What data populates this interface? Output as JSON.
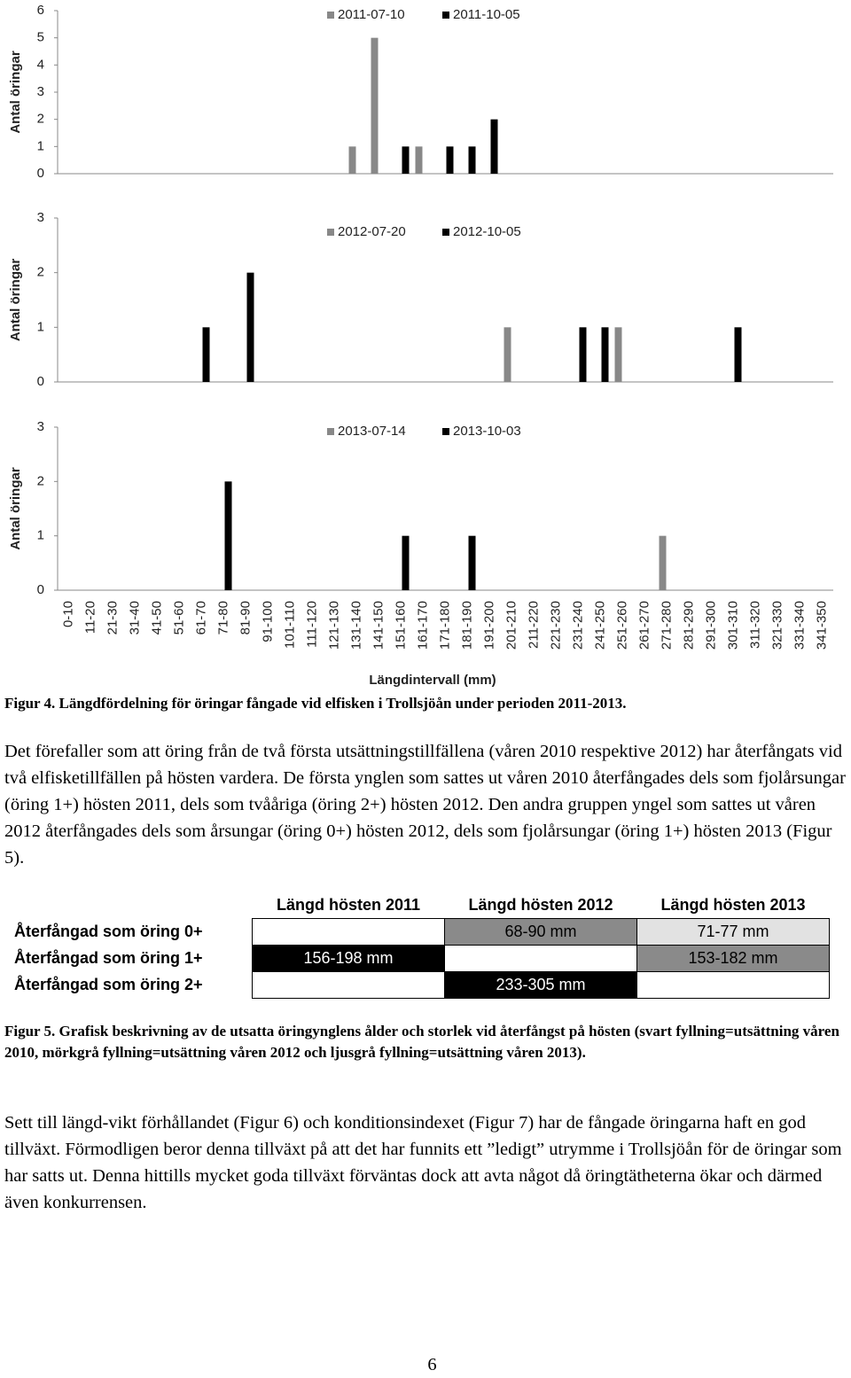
{
  "chart_data": [
    {
      "type": "bar",
      "ylabel": "Antal öringar",
      "categories": [
        null,
        null,
        null,
        null,
        null,
        null,
        null,
        null,
        null,
        null,
        null,
        null,
        null,
        null,
        null,
        null,
        null,
        null,
        null,
        null,
        null,
        null,
        null,
        null,
        null,
        null,
        null,
        null,
        null,
        null,
        null,
        null,
        null,
        null,
        null
      ],
      "series": [
        {
          "name": "2011-07-10",
          "color": "#888888",
          "values": [
            0,
            0,
            0,
            0,
            0,
            0,
            0,
            0,
            0,
            0,
            0,
            0,
            0,
            1,
            5,
            0,
            1,
            0,
            0,
            0,
            0,
            0,
            0,
            0,
            0,
            0,
            0,
            0,
            0,
            0,
            0,
            0,
            0,
            0,
            0
          ]
        },
        {
          "name": "2011-10-05",
          "color": "#000000",
          "values": [
            0,
            0,
            0,
            0,
            0,
            0,
            0,
            0,
            0,
            0,
            0,
            0,
            0,
            0,
            0,
            1,
            0,
            1,
            1,
            2,
            0,
            0,
            0,
            0,
            0,
            0,
            0,
            0,
            0,
            0,
            0,
            0,
            0,
            0,
            0
          ]
        }
      ],
      "ylim": [
        0,
        6
      ],
      "yticks": [
        0,
        1,
        2,
        3,
        4,
        5,
        6
      ]
    },
    {
      "type": "bar",
      "ylabel": "Antal öringar",
      "categories": [
        null,
        null,
        null,
        null,
        null,
        null,
        null,
        null,
        null,
        null,
        null,
        null,
        null,
        null,
        null,
        null,
        null,
        null,
        null,
        null,
        null,
        null,
        null,
        null,
        null,
        null,
        null,
        null,
        null,
        null,
        null,
        null,
        null,
        null,
        null
      ],
      "series": [
        {
          "name": "2012-07-20",
          "color": "#888888",
          "values": [
            0,
            0,
            0,
            0,
            0,
            0,
            0,
            0,
            0,
            0,
            0,
            0,
            0,
            0,
            0,
            0,
            0,
            0,
            0,
            0,
            1,
            0,
            0,
            0,
            0,
            1,
            0,
            0,
            0,
            0,
            0,
            0,
            0,
            0,
            0
          ]
        },
        {
          "name": "2012-10-05",
          "color": "#000000",
          "values": [
            0,
            0,
            0,
            0,
            0,
            0,
            1,
            0,
            2,
            0,
            0,
            0,
            0,
            0,
            0,
            0,
            0,
            0,
            0,
            0,
            0,
            0,
            0,
            1,
            1,
            0,
            0,
            0,
            0,
            0,
            1,
            0,
            0,
            0,
            0
          ]
        }
      ],
      "ylim": [
        0,
        3
      ],
      "yticks": [
        0,
        1,
        2,
        3
      ]
    },
    {
      "type": "bar",
      "ylabel": "Antal öringar",
      "xlabel": "Längdintervall (mm)",
      "categories": [
        "0-10",
        "11-20",
        "21-30",
        "31-40",
        "41-50",
        "51-60",
        "61-70",
        "71-80",
        "81-90",
        "91-100",
        "101-110",
        "111-120",
        "121-130",
        "131-140",
        "141-150",
        "151-160",
        "161-170",
        "171-180",
        "181-190",
        "191-200",
        "201-210",
        "211-220",
        "221-230",
        "231-240",
        "241-250",
        "251-260",
        "261-270",
        "271-280",
        "281-290",
        "291-300",
        "301-310",
        "311-320",
        "321-330",
        "331-340",
        "341-350"
      ],
      "series": [
        {
          "name": "2013-07-14",
          "color": "#888888",
          "values": [
            0,
            0,
            0,
            0,
            0,
            0,
            0,
            0,
            0,
            0,
            0,
            0,
            0,
            0,
            0,
            0,
            0,
            0,
            0,
            0,
            0,
            0,
            0,
            0,
            0,
            0,
            0,
            1,
            0,
            0,
            0,
            0,
            0,
            0,
            0
          ]
        },
        {
          "name": "2013-10-03",
          "color": "#000000",
          "values": [
            0,
            0,
            0,
            0,
            0,
            0,
            0,
            2,
            0,
            0,
            0,
            0,
            0,
            0,
            0,
            1,
            0,
            0,
            1,
            0,
            0,
            0,
            0,
            0,
            0,
            0,
            0,
            0,
            0,
            0,
            0,
            0,
            0,
            0,
            0
          ]
        }
      ],
      "ylim": [
        0,
        3
      ],
      "yticks": [
        0,
        1,
        2,
        3
      ]
    }
  ],
  "document": {
    "figure4_caption": "Figur 4. Längdfördelning för öringar fångade vid elfisken i Trollsjöån under perioden 2011-2013.",
    "paragraph_1": "Det förefaller som att öring från de två första utsättningstillfällena (våren 2010 respektive 2012) har återfångats vid två elfisketillfällen på hösten vardera. De första ynglen som sattes ut våren 2010 återfångades dels som fjolårsungar (öring 1+) hösten 2011, dels som tvååriga (öring 2+) hösten 2012. Den andra gruppen yngel som sattes ut våren 2012 återfångades dels som årsungar (öring 0+) hösten 2012, dels som fjolårsungar (öring 1+) hösten 2013 (Figur 5).",
    "table": {
      "columns": [
        "Längd hösten 2011",
        "Längd hösten 2012",
        "Längd hösten 2013"
      ],
      "rows": [
        {
          "label": "Återfångad som öring 0+",
          "cells": [
            null,
            "68-90 mm",
            "71-77 mm"
          ]
        },
        {
          "label": "Återfångad som öring 1+",
          "cells": [
            "156-198 mm",
            null,
            "153-182 mm"
          ]
        },
        {
          "label": "Återfångad som öring 2+",
          "cells": [
            null,
            "233-305 mm",
            null
          ]
        }
      ]
    },
    "figure5_caption": "Figur 5. Grafisk beskrivning av de utsatta öringynglens ålder och storlek vid återfångst på hösten (svart fyllning=utsättning våren 2010, mörkgrå fyllning=utsättning våren 2012 och ljusgrå fyllning=utsättning våren 2013).",
    "paragraph_2": "Sett till längd-vikt förhållandet (Figur 6) och konditionsindexet (Figur 7) har de fångade öringarna haft en god tillväxt. Förmodligen beror denna tillväxt på att det har funnits ett ”ledigt” utrymme i Trollsjöån för de öringar som har satts ut. Denna hittills mycket goda tillväxt förväntas dock att avta något då öringtätheterna ökar och därmed även konkurrensen.",
    "page_number": 6
  }
}
